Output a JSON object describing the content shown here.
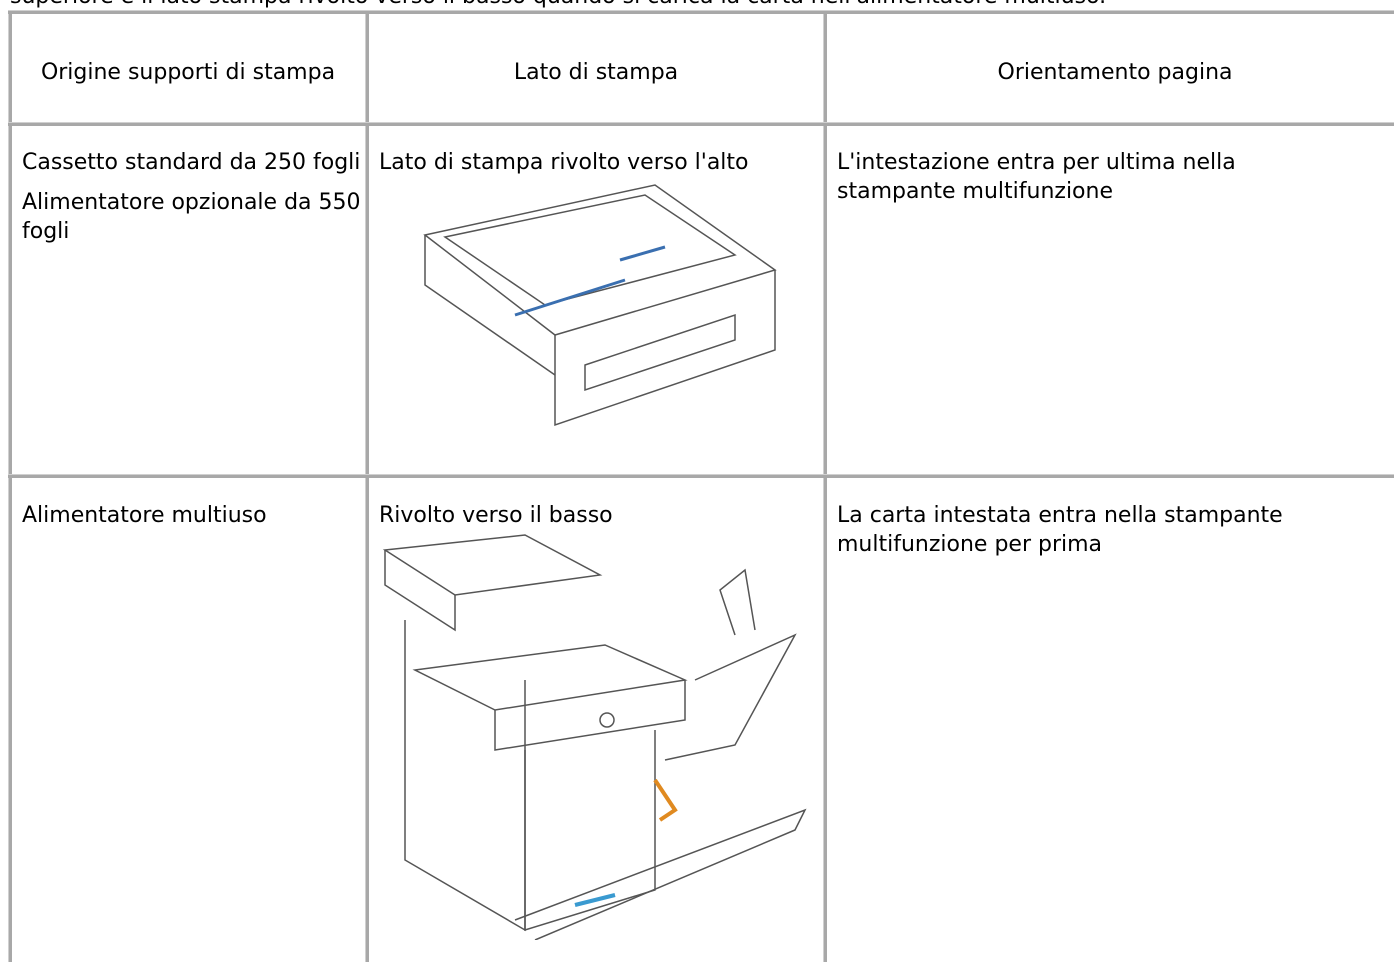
{
  "intro": "superiore e il lato stampa rivolto verso il basso quando si carica la carta nell'alimentatore multiuso.",
  "table": {
    "header": [
      "Origine supporti di stampa",
      "Lato di stampa",
      "Orientamento pagina"
    ],
    "rows": [
      {
        "source": [
          "Cassetto standard da 250 fogli",
          "Alimentatore opzionale da 550 fogli"
        ],
        "side": "Lato di stampa rivolto verso l'alto",
        "orientation": "L'intestazione entra per ultima nella stampante multifunzione"
      },
      {
        "source": [
          "Alimentatore multiuso"
        ],
        "side": "Rivolto verso il basso",
        "orientation": "La carta intestata entra nella stampante multifunzione per prima"
      }
    ]
  }
}
